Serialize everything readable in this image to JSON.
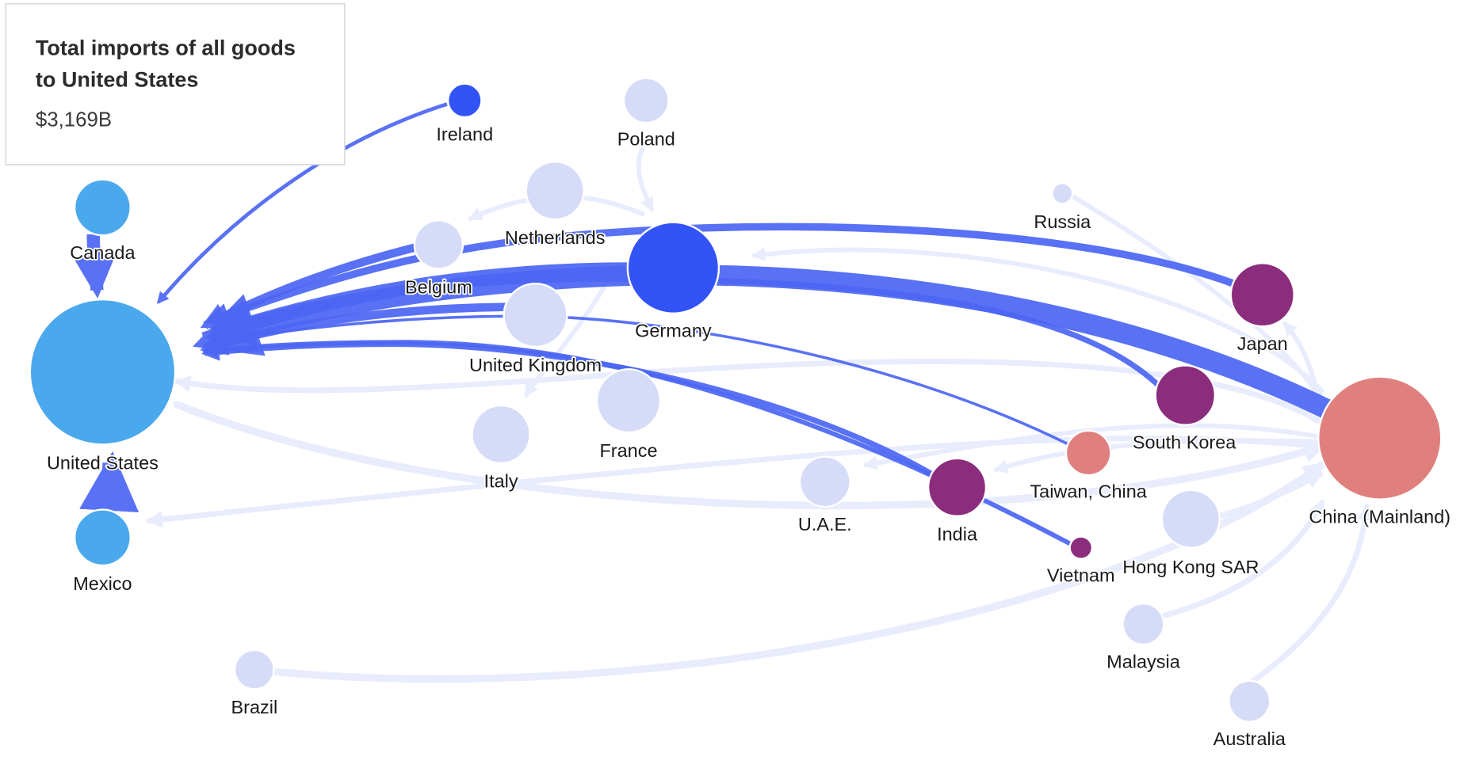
{
  "tooltip": {
    "title_lines": [
      "Total imports of all goods",
      "to United States"
    ],
    "value": "$3,169B"
  },
  "nodes": [
    {
      "label": "United States"
    },
    {
      "label": "Canada"
    },
    {
      "label": "Mexico"
    },
    {
      "label": "Ireland"
    },
    {
      "label": "Poland"
    },
    {
      "label": "Netherlands"
    },
    {
      "label": "Belgium"
    },
    {
      "label": "Germany"
    },
    {
      "label": "United Kingdom"
    },
    {
      "label": "France"
    },
    {
      "label": "Italy"
    },
    {
      "label": "Russia"
    },
    {
      "label": "Japan"
    },
    {
      "label": "South Korea"
    },
    {
      "label": "Taiwan, China"
    },
    {
      "label": "China (Mainland)"
    },
    {
      "label": "U.A.E."
    },
    {
      "label": "India"
    },
    {
      "label": "Vietnam"
    },
    {
      "label": "Hong Kong SAR"
    },
    {
      "label": "Malaysia"
    },
    {
      "label": "Brazil"
    },
    {
      "label": "Australia"
    }
  ]
}
